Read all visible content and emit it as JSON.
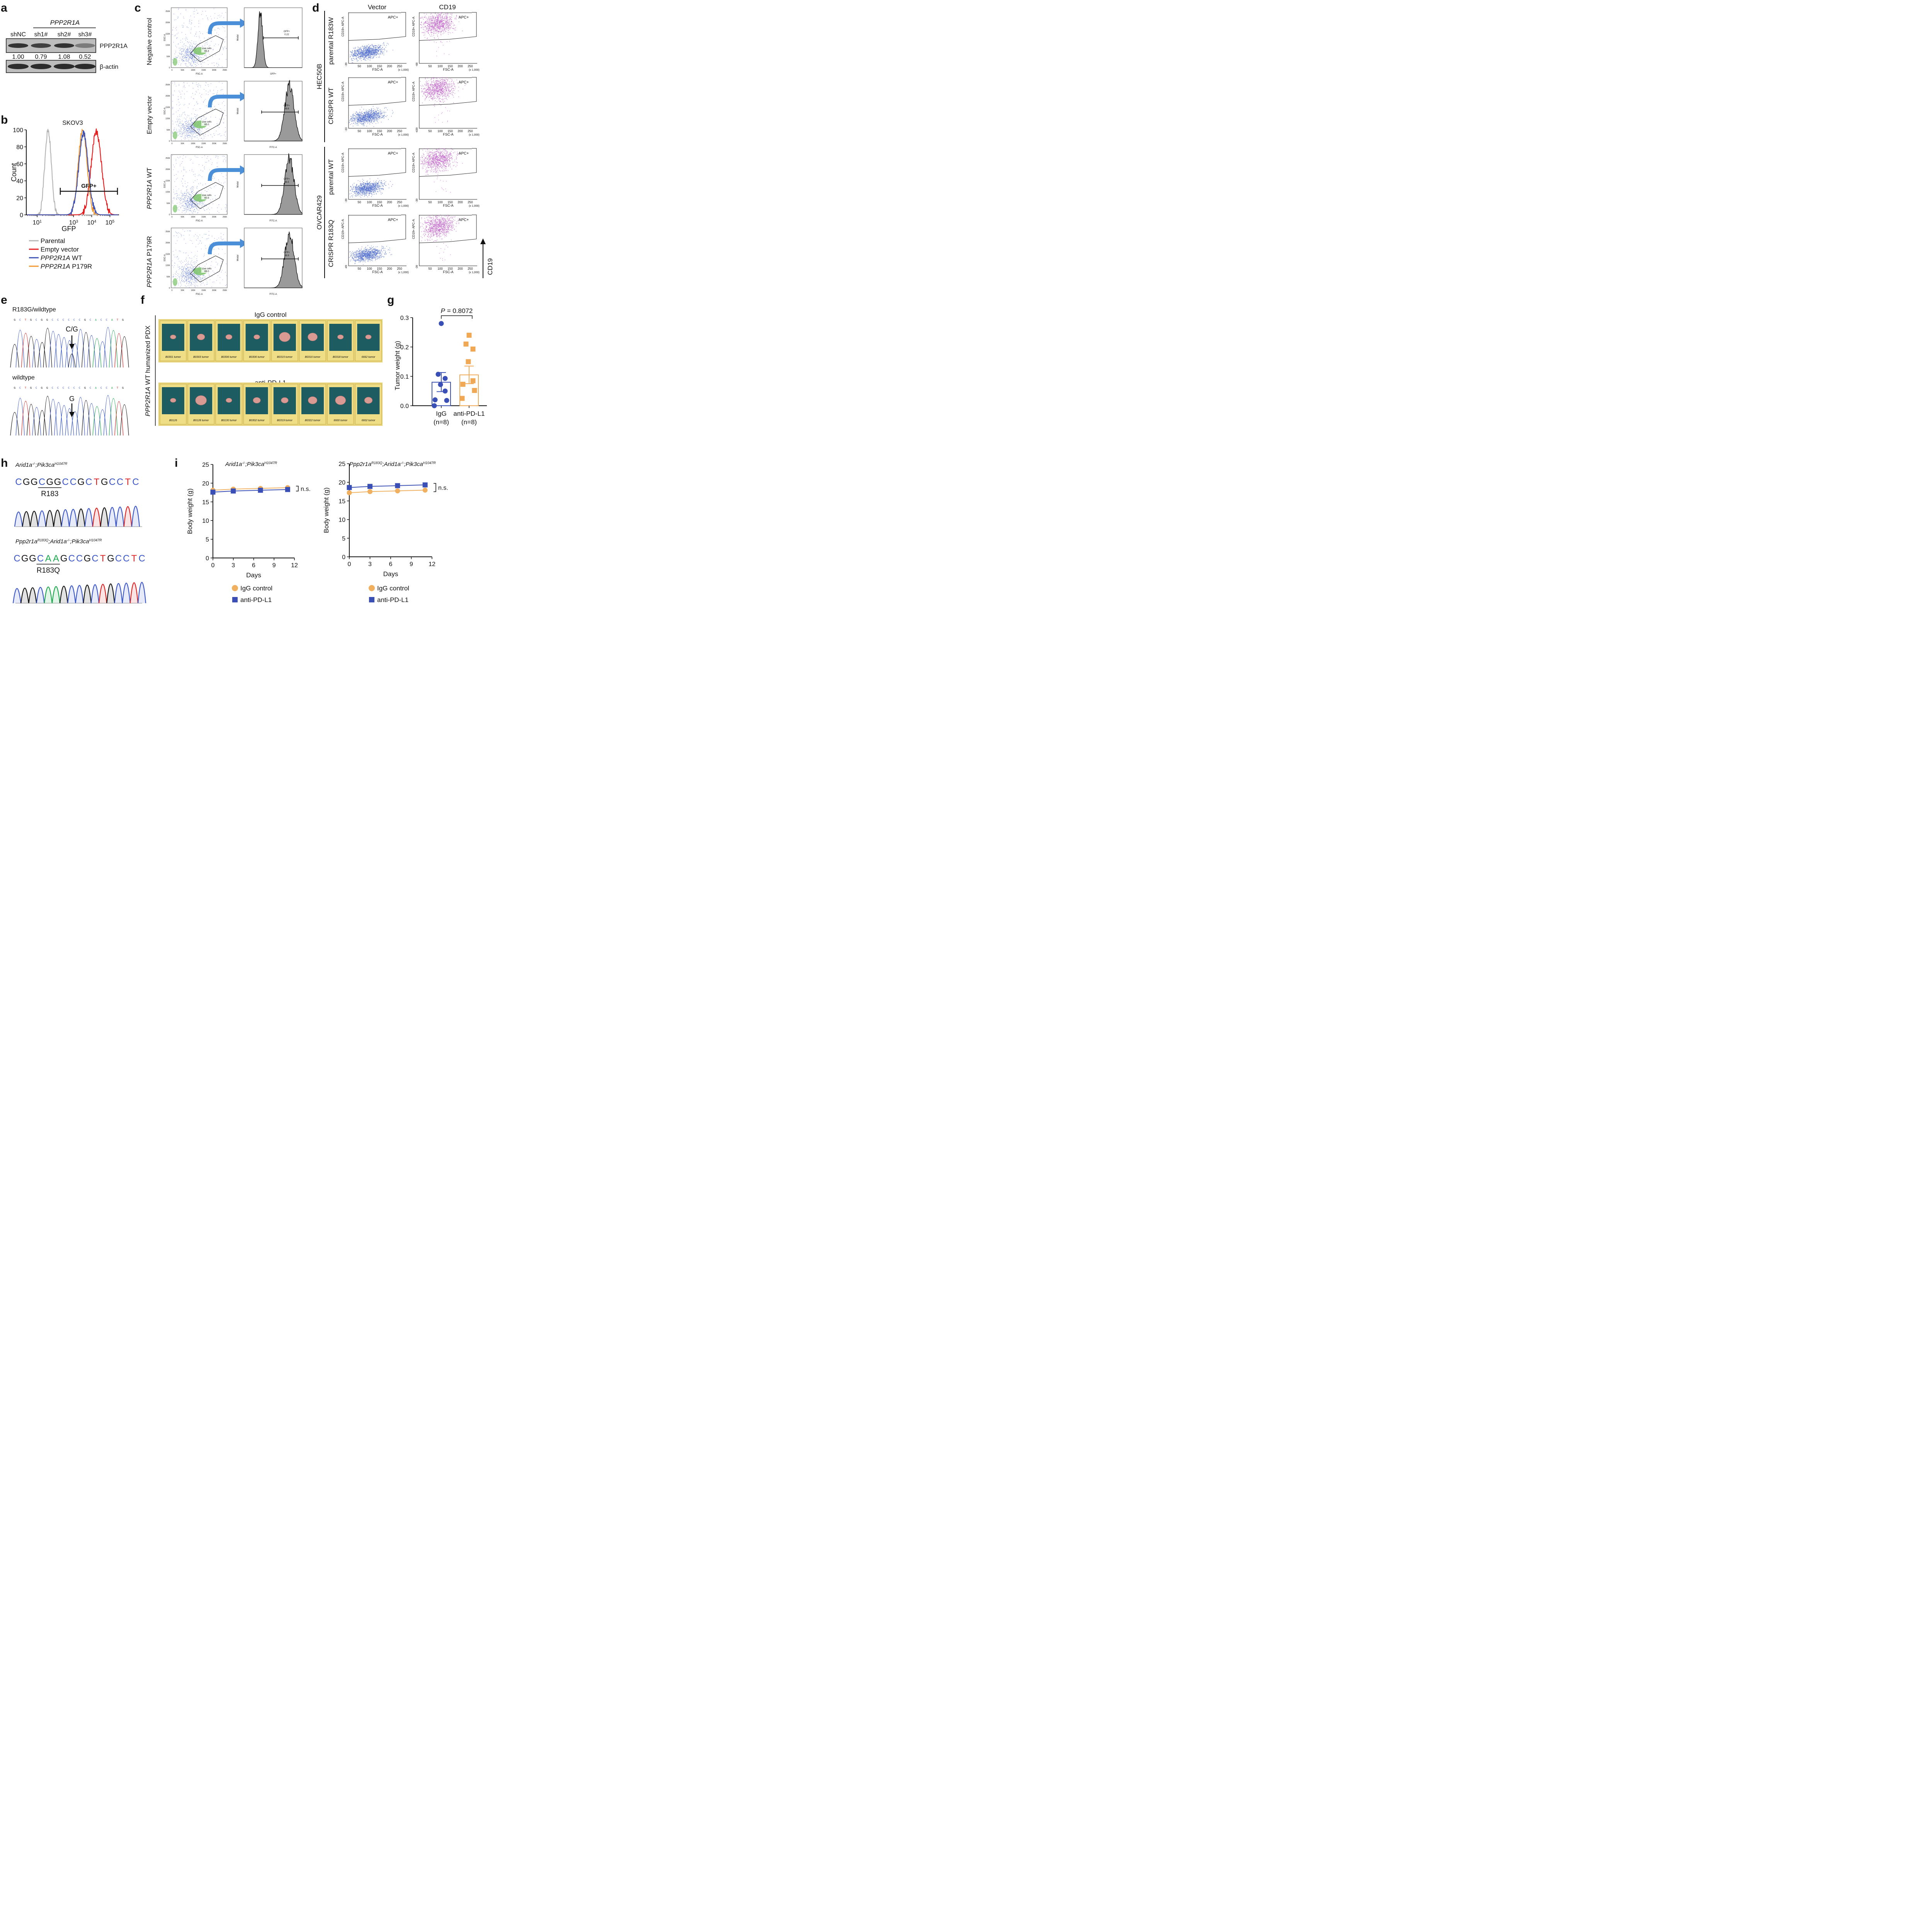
{
  "panels": {
    "a": {
      "letter": "a",
      "group_label": "PPP2R1A",
      "lanes": [
        "shNC",
        "sh1#",
        "sh2#",
        "sh3#"
      ],
      "quant": [
        "1.00",
        "0.79",
        "1.08",
        "0.52"
      ],
      "band_labels": [
        "PPP2R1A",
        "β-actin"
      ]
    },
    "b": {
      "letter": "b",
      "title": "SKOV3",
      "ylabel": "Count",
      "xlabel": "GFP",
      "gate_label": "GFP+",
      "yticks": [
        "0",
        "20",
        "40",
        "60",
        "80",
        "100"
      ],
      "xticks": [
        {
          "base": "10",
          "exp": "1"
        },
        {
          "base": "10",
          "exp": "3"
        },
        {
          "base": "10",
          "exp": "4"
        },
        {
          "base": "10",
          "exp": "5"
        }
      ],
      "legend": [
        {
          "label": "Parental",
          "color": "#b4b4b4"
        },
        {
          "label": "Empty vector",
          "color": "#e41a1c"
        },
        {
          "label_italic": "PPP2R1A",
          "label_rest": " WT",
          "color": "#3a4fb5"
        },
        {
          "label_italic": "PPP2R1A",
          "label_rest": " P179R",
          "color": "#f0962b"
        }
      ]
    },
    "c": {
      "letter": "c",
      "rows": [
        {
          "label": "Negative control",
          "gate": "65.4",
          "hist_gate_label": "GFP+",
          "hist_gate_value": "0.22",
          "hist_xlabel": "GFP+"
        },
        {
          "label": "Empty vector",
          "gate": "65.0",
          "hist_gate_label": "GFP+",
          "hist_gate_value": "98.6",
          "hist_xlabel": "FITC-A"
        },
        {
          "label_italic": "PPP2R1A",
          "label_rest": " WT",
          "gate": "60.9",
          "hist_gate_label": "GFP+",
          "hist_gate_value": "98.5",
          "hist_xlabel": "FITC-A"
        },
        {
          "label_italic": "PPP2R1A",
          "label_rest": " P179R",
          "gate": "69.0",
          "hist_gate_label": "GFP+",
          "hist_gate_value": "98.9",
          "hist_xlabel": "FITC-A"
        }
      ],
      "gate_name": "Live cells",
      "scatter_xlabel": "FSC-A",
      "scatter_ylabel": "SSC-A",
      "hist_ylabel": "Modal",
      "scatter_yticks": [
        "0",
        "50K",
        "100K",
        "150K",
        "200K",
        "250K"
      ],
      "scatter_xticks": [
        "0",
        "50K",
        "100K",
        "150K",
        "200K",
        "250K"
      ]
    },
    "d": {
      "letter": "d",
      "col_headers": [
        "Vector",
        "CD19"
      ],
      "groups": [
        {
          "name": "HEC50B",
          "rows": [
            "parental R183W",
            "CRISPR WT"
          ]
        },
        {
          "name": "OVCAR429",
          "rows": [
            "parental WT",
            "CRISPR R183Q"
          ]
        }
      ],
      "gate_label": "APC+",
      "xlabel": "FSC-A",
      "ylabel": "CD19+ APC-A",
      "x_unit": "(x 1,000)",
      "xticks": [
        "50",
        "100",
        "150",
        "200",
        "250"
      ],
      "ymins": [
        "-39",
        "-68",
        "-33",
        "-439",
        "-39",
        "-39",
        "-49",
        "-39"
      ],
      "arrow_label": "CD19",
      "vector_color": "#3a5bc7",
      "cd19_color": "#b84fc2"
    },
    "e": {
      "letter": "e",
      "top_title": "R183G/wildtype",
      "top_sequence": "G C T G C G G C C C C C C G C A C C A T G",
      "top_call": "C/G",
      "bottom_title": "wildtype",
      "bottom_sequence": "G C T G C G G C C C C C C G C A C C A T G",
      "bottom_call": "G"
    },
    "f": {
      "letter": "f",
      "side_label_italic": "PPP2R1A",
      "side_label_rest": " WT humanized PDX",
      "top_title": "IgG control",
      "bottom_title": "anti-PD-L1",
      "top_tags": [
        "B0301 tumor",
        "B0303 tumor",
        "B0306 tumor",
        "B0306 tumor",
        "B0315 tumor",
        "B0316 tumor",
        "B0318 tumor",
        "6662 tumor"
      ],
      "bottom_tags": [
        "B0126",
        "B0128 tumor",
        "B0130 tumor",
        "B0302 tumor",
        "B0319 tumor",
        "B0322 tumor",
        "6600 tumor",
        "6602 tumor"
      ]
    },
    "h": {
      "letter": "h",
      "top_genotype": {
        "gene1": "Arid1a",
        "sup1": "-/-",
        "sep": ";",
        "gene2": "Pik3ca",
        "sup2": "H1047R"
      },
      "top_sequence": [
        "C",
        "G",
        "G",
        "C",
        "G",
        "G",
        "C",
        "C",
        "G",
        "C",
        "T",
        "G",
        "C",
        "C",
        "T",
        "C"
      ],
      "top_codon_label": "R183",
      "bottom_genotype": {
        "gene0": "Ppp2r1a",
        "sup0": "R183Q",
        "gene1": "Arid1a",
        "sup1": "-/-",
        "gene2": "Pik3ca",
        "sup2": "H1047R"
      },
      "bottom_sequence": [
        "C",
        "G",
        "G",
        "C",
        "A",
        "A",
        "G",
        "C",
        "C",
        "G",
        "C",
        "T",
        "G",
        "C",
        "C",
        "T",
        "C"
      ],
      "bottom_codon_label": "R183Q"
    }
  },
  "chart_data": [
    {
      "id": "g",
      "letter": "g",
      "type": "scatter",
      "title": "P = 0.8072",
      "ylabel": "Tumor weight (g)",
      "ylim": [
        0,
        0.3
      ],
      "yticks": [
        "0.0",
        "0.1",
        "0.2",
        "0.3"
      ],
      "categories": [
        {
          "label": "IgG",
          "n": "(n=8)",
          "color": "#3a4fb5",
          "marker": "circle",
          "mean": 0.08,
          "sem_low": 0.048,
          "sem_high": 0.113,
          "values": [
            0.28,
            0.107,
            0.093,
            0.072,
            0.05,
            0.02,
            0.018,
            0.0
          ]
        },
        {
          "label": "anti-PD-L1",
          "n": "(n=8)",
          "color": "#f0a855",
          "marker": "square",
          "mean": 0.105,
          "sem_low": 0.075,
          "sem_high": 0.135,
          "values": [
            0.24,
            0.21,
            0.193,
            0.15,
            0.085,
            0.073,
            0.052,
            0.025
          ]
        }
      ]
    },
    {
      "id": "i1",
      "letter": "i",
      "type": "line",
      "title": {
        "gene1": "Arid1a",
        "sup1": "-/-",
        "gene2": "Pik3ca",
        "sup2": "H1047R"
      },
      "xlabel": "Days",
      "ylabel": "Body weight (g)",
      "xlim": [
        0,
        12
      ],
      "ylim": [
        0,
        25
      ],
      "xticks": [
        "0",
        "3",
        "6",
        "9",
        "12"
      ],
      "yticks": [
        "0",
        "5",
        "10",
        "15",
        "20",
        "25"
      ],
      "x": [
        0,
        3,
        7,
        11
      ],
      "series": [
        {
          "name": "IgG control",
          "color": "#f0b060",
          "marker": "circle",
          "values": [
            18.1,
            18.4,
            18.6,
            18.8
          ]
        },
        {
          "name": "anti-PD-L1",
          "color": "#3a4fb5",
          "marker": "square",
          "values": [
            17.6,
            17.9,
            18.1,
            18.3
          ]
        }
      ],
      "annotation": "n.s."
    },
    {
      "id": "i2",
      "type": "line",
      "title": {
        "gene0": "Ppp2r1a",
        "sup0": "R183Q",
        "gene1": "Arid1a",
        "sup1": "-/-",
        "gene2": "Pik3ca",
        "sup2": "H1047R"
      },
      "xlabel": "Days",
      "ylabel": "Body weight (g)",
      "xlim": [
        0,
        12
      ],
      "ylim": [
        0,
        25
      ],
      "xticks": [
        "0",
        "3",
        "6",
        "9",
        "12"
      ],
      "yticks": [
        "0",
        "5",
        "10",
        "15",
        "20",
        "25"
      ],
      "x": [
        0,
        3,
        7,
        11
      ],
      "series": [
        {
          "name": "IgG control",
          "color": "#f0b060",
          "marker": "circle",
          "values": [
            17.2,
            17.5,
            17.7,
            17.9
          ]
        },
        {
          "name": "anti-PD-L1",
          "color": "#3a4fb5",
          "marker": "square",
          "values": [
            18.6,
            18.9,
            19.1,
            19.3
          ]
        }
      ],
      "annotation": "n.s."
    }
  ]
}
